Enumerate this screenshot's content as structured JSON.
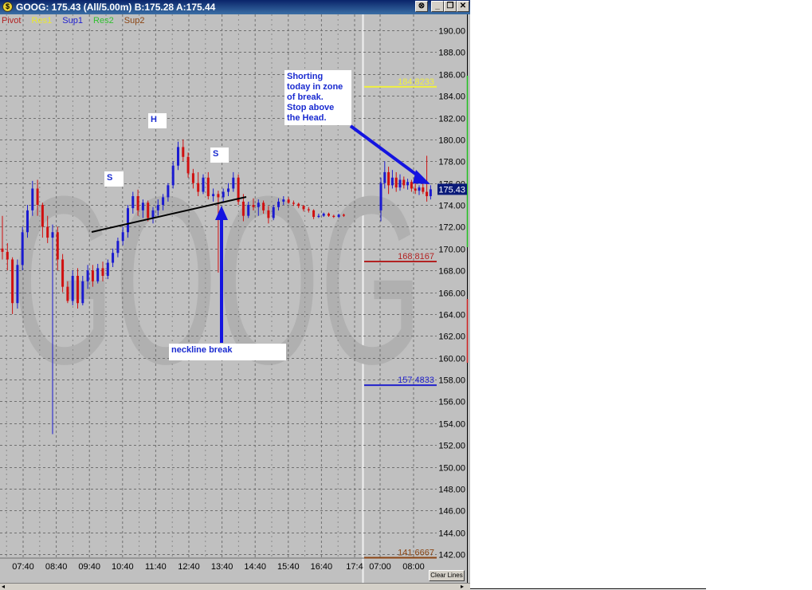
{
  "window": {
    "title": "GOOG: 175.43 (All/5.00m)  B:175.28  A:175.44",
    "buttons": {
      "min": "_",
      "restore": "❐",
      "close": "✕"
    },
    "clear_lines_label": "Clear Lines"
  },
  "chart_data": {
    "type": "candlestick",
    "symbol": "GOOG",
    "last_price": "175.43",
    "legend": [
      {
        "name": "Pivot",
        "color": "#b22222"
      },
      {
        "name": "Res1",
        "color": "#e8e830"
      },
      {
        "name": "Sup1",
        "color": "#2020d0"
      },
      {
        "name": "Res2",
        "color": "#30c030"
      },
      {
        "name": "Sup2",
        "color": "#8b4513"
      }
    ],
    "y_axis": {
      "range": [
        141,
        191
      ],
      "ticks": [
        "190.00",
        "188.00",
        "186.00",
        "184.00",
        "182.00",
        "180.00",
        "178.00",
        "176.00",
        "174.00",
        "172.00",
        "170.00",
        "168.00",
        "166.00",
        "164.00",
        "162.00",
        "160.00",
        "158.00",
        "156.00",
        "154.00",
        "152.00",
        "150.00",
        "148.00",
        "146.00",
        "144.00",
        "142.00"
      ]
    },
    "left_panel": {
      "x_ticks": [
        "07:40",
        "08:40",
        "09:40",
        "10:40",
        "11:40",
        "12:40",
        "13:40",
        "14:40",
        "15:40",
        "16:40",
        "17:4"
      ],
      "bars": [
        [
          170,
          173,
          169,
          169.7
        ],
        [
          169.7,
          170.5,
          168,
          169
        ],
        [
          169,
          169.2,
          164,
          165
        ],
        [
          165,
          169,
          164.5,
          168.5
        ],
        [
          168.5,
          172,
          168,
          171.5
        ],
        [
          171.5,
          174,
          171,
          173.5
        ],
        [
          173.5,
          176.2,
          173,
          175.5
        ],
        [
          175.5,
          176.3,
          173,
          174
        ],
        [
          174,
          174.2,
          171,
          172
        ],
        [
          172,
          173,
          170.5,
          171
        ],
        [
          171,
          172.2,
          153,
          171.5
        ],
        [
          171.5,
          172,
          168,
          169
        ],
        [
          169,
          169.5,
          166,
          166.5
        ],
        [
          166.5,
          167,
          165,
          165.2
        ],
        [
          165.2,
          168,
          164.8,
          167.5
        ],
        [
          167.5,
          168.2,
          164.5,
          165
        ],
        [
          165,
          167.5,
          164.8,
          167
        ],
        [
          167,
          168.5,
          166.3,
          168
        ],
        [
          168,
          168.5,
          166.5,
          167
        ],
        [
          167,
          168.6,
          166.8,
          168.2
        ],
        [
          168.2,
          168.8,
          167,
          167.5
        ],
        [
          167.5,
          169,
          167.2,
          168.7
        ],
        [
          168.7,
          170,
          168.3,
          169.6
        ],
        [
          169.6,
          171,
          169.2,
          170.7
        ],
        [
          170.7,
          172,
          170.3,
          171.5
        ],
        [
          171.5,
          174,
          171,
          173.7
        ],
        [
          173.7,
          175.2,
          173.2,
          174.8
        ],
        [
          174.8,
          175.4,
          173,
          173.5
        ],
        [
          173.5,
          174.5,
          172.8,
          174.2
        ],
        [
          174.2,
          174.4,
          172.5,
          172.8
        ],
        [
          172.8,
          173.8,
          172.3,
          173.5
        ],
        [
          173.5,
          174.5,
          173,
          174
        ],
        [
          174,
          175,
          173.5,
          174.7
        ],
        [
          174.7,
          176,
          174.3,
          175.8
        ],
        [
          175.8,
          178,
          175.5,
          177.6
        ],
        [
          177.6,
          179.8,
          177.2,
          179.3
        ],
        [
          179.3,
          180,
          178,
          178.4
        ],
        [
          178.4,
          178.8,
          176.5,
          176.9
        ],
        [
          176.9,
          177.3,
          175.5,
          176
        ],
        [
          176,
          177,
          174.8,
          175.2
        ],
        [
          175.2,
          176.8,
          175,
          176.5
        ],
        [
          176.5,
          177,
          174.5,
          174.8
        ],
        [
          174.8,
          175.5,
          174.3,
          175
        ],
        [
          175,
          175.3,
          167.8,
          174.7
        ],
        [
          174.7,
          175.5,
          174.2,
          175.2
        ],
        [
          175.2,
          176,
          174.8,
          175.5
        ],
        [
          175.5,
          177,
          175.2,
          176.5
        ],
        [
          176.5,
          176.8,
          174,
          174.3
        ],
        [
          174.3,
          175,
          172.5,
          173
        ],
        [
          173,
          174.3,
          172.8,
          174
        ],
        [
          174,
          174.6,
          173.5,
          173.8
        ],
        [
          173.8,
          174.5,
          173,
          174.2
        ],
        [
          174.2,
          174.4,
          173.2,
          173.5
        ],
        [
          173.5,
          173.9,
          172.3,
          172.8
        ],
        [
          172.8,
          174,
          172.6,
          173.8
        ],
        [
          173.8,
          174.6,
          173.5,
          174.3
        ],
        [
          174.3,
          174.8,
          174,
          174.5
        ],
        [
          174.5,
          174.7,
          174.1,
          174.2
        ],
        [
          174.2,
          174.4,
          173.9,
          174.1
        ],
        [
          174.1,
          174.2,
          173.7,
          173.9
        ],
        [
          173.9,
          174,
          173.4,
          173.6
        ],
        [
          173.6,
          173.8,
          173.3,
          173.5
        ],
        [
          173.5,
          173.6,
          172.7,
          172.9
        ],
        [
          172.9,
          173.2,
          172.8,
          173
        ],
        [
          173,
          173.3,
          172.9,
          173.2
        ],
        [
          173.2,
          173.3,
          172.9,
          173
        ],
        [
          173,
          173.1,
          172.8,
          172.9
        ],
        [
          172.9,
          173.2,
          172.8,
          173.1
        ],
        [
          173.1,
          173.2,
          172.9,
          173
        ]
      ]
    },
    "right_panel": {
      "x_ticks": [
        "07:00",
        "08:00"
      ],
      "levels": [
        {
          "label": "184.8233",
          "value": 184.8233,
          "color": "#f0f040"
        },
        {
          "label": "168.8167",
          "value": 168.8167,
          "color": "#b22222"
        },
        {
          "label": "157.4833",
          "value": 157.4833,
          "color": "#2222cc"
        },
        {
          "label": "141.6667",
          "value": 141.6667,
          "color": "#8b4513"
        }
      ],
      "bars": [
        [
          173.5,
          176.5,
          172.5,
          176
        ],
        [
          176,
          178,
          175.5,
          177
        ],
        [
          177,
          177.5,
          175,
          175.8
        ],
        [
          175.8,
          177.2,
          175.5,
          176.5
        ],
        [
          176.5,
          177,
          175.2,
          175.6
        ],
        [
          175.6,
          176.8,
          175.3,
          176.3
        ],
        [
          176.3,
          176.6,
          175.5,
          175.8
        ],
        [
          175.8,
          176.4,
          175.4,
          176.1
        ],
        [
          176.1,
          176.3,
          175.2,
          175.5
        ],
        [
          175.5,
          176,
          175,
          175.3
        ],
        [
          175.3,
          175.8,
          174.9,
          175.6
        ],
        [
          175.6,
          176,
          175,
          175.2
        ],
        [
          175.2,
          178.5,
          174.3,
          174.8
        ],
        [
          174.8,
          175.8,
          174.5,
          175.43
        ]
      ]
    },
    "annotations": {
      "shoulder_left": "S",
      "head": "H",
      "shoulder_right": "S",
      "neckline_break": "neckline break",
      "shorting_note": [
        "Shorting",
        "today in zone",
        "of break.",
        "Stop above",
        "the Head."
      ]
    },
    "watermark": "GOOG"
  }
}
